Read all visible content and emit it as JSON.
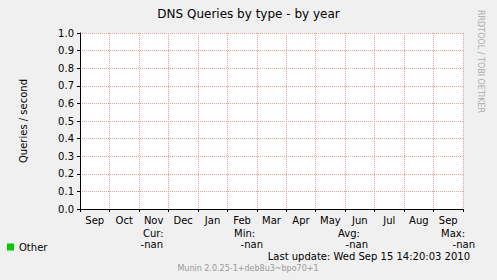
{
  "chart_data": {
    "type": "line",
    "title": "DNS Queries by type - by year",
    "y_label": "Queries / second",
    "categories": [
      "Sep",
      "Oct",
      "Nov",
      "Dec",
      "Jan",
      "Feb",
      "Mar",
      "Apr",
      "May",
      "Jun",
      "Jul",
      "Aug",
      "Sep"
    ],
    "series": [
      {
        "name": "Other",
        "color": "#00cc00",
        "values": [
          null,
          null,
          null,
          null,
          null,
          null,
          null,
          null,
          null,
          null,
          null,
          null,
          null
        ],
        "stats": [
          "-nan",
          "-nan",
          "-nan",
          "-nan"
        ]
      }
    ],
    "stat_labels": [
      "Cur:",
      "Min:",
      "Avg:",
      "Max:"
    ],
    "ylim": [
      0,
      1
    ],
    "yticks": [
      {
        "value": 0,
        "label": "0.0"
      },
      0.1,
      0.2,
      0.3,
      0.4,
      0.5,
      0.6,
      0.7,
      0.8,
      0.9,
      {
        "value": 1,
        "label": "1.0"
      }
    ],
    "grid": true,
    "legend": "bottom-left",
    "footer": "Last update: Wed Sep 15 14:20:03 2010",
    "credit": "Munin 2.0.25-1+deb8u3~bpo70+1",
    "watermark": "RRDTOOL / TOBI OETIKER"
  }
}
